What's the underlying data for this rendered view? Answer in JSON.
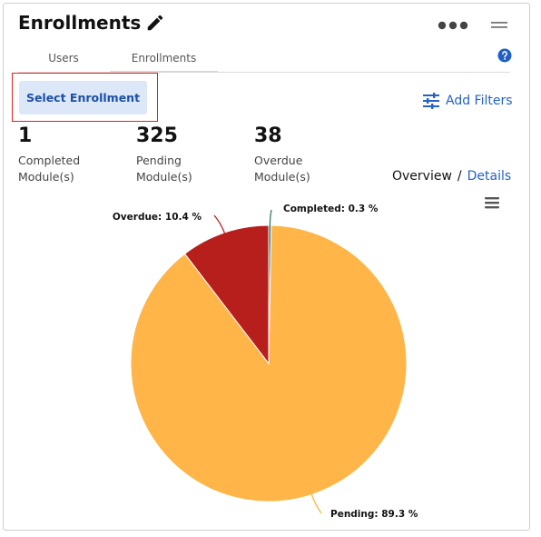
{
  "widget": {
    "title": "Enrollments"
  },
  "tabs": [
    {
      "label": "Users",
      "active": false
    },
    {
      "label": "Enrollments",
      "active": true
    }
  ],
  "toolbar": {
    "select_enrollment_label": "Select Enrollment",
    "add_filters_label": "Add Filters"
  },
  "stats": {
    "completed": {
      "value": "1",
      "label": "Completed Module(s)"
    },
    "pending": {
      "value": "325",
      "label": "Pending Module(s)"
    },
    "overdue": {
      "value": "38",
      "label": "Overdue Module(s)"
    }
  },
  "view_toggle": {
    "overview": "Overview",
    "separator": "/",
    "details": "Details"
  },
  "colors": {
    "accent": "#2462c6",
    "completed": "#2e7d5b",
    "pending": "#ffb547",
    "overdue": "#b71f1c"
  },
  "chart_data": {
    "type": "pie",
    "slices": [
      {
        "name": "Completed",
        "value": 0.3,
        "label": "Completed: 0.3 %"
      },
      {
        "name": "Pending",
        "value": 89.3,
        "label": "Pending: 89.3 %"
      },
      {
        "name": "Overdue",
        "value": 10.4,
        "label": "Overdue: 10.4 %"
      }
    ]
  }
}
